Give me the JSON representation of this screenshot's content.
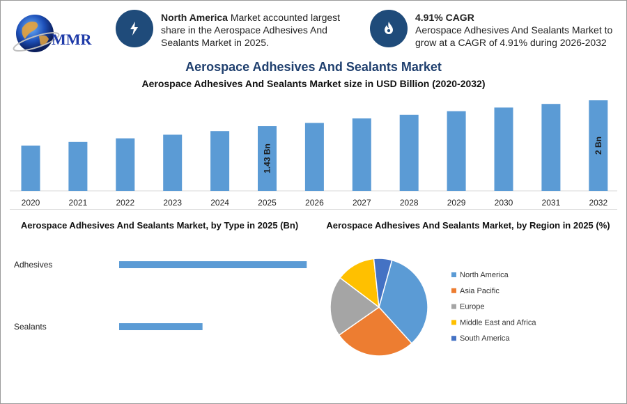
{
  "logo": {
    "text": "MMR"
  },
  "highlights": [
    {
      "title": "North America",
      "text": " Market accounted largest share in the Aerospace Adhesives And Sealants Market in 2025.",
      "icon": "lightning-icon"
    },
    {
      "title": "4.91% CAGR",
      "text": "Aerospace Adhesives And Sealants Market to grow at a CAGR of 4.91% during 2026-2032",
      "icon": "flame-icon"
    }
  ],
  "colors": {
    "bar": "#5b9bd5",
    "icon_bg": "#1f4b7a",
    "title": "#1f3f6e"
  },
  "chart_data": [
    {
      "type": "bar",
      "title": "Aerospace Adhesives And Sealants Market",
      "subtitle": "Aerospace Adhesives And Sealants Market size in USD Billion (2020-2032)",
      "categories": [
        "2020",
        "2021",
        "2022",
        "2023",
        "2024",
        "2025",
        "2026",
        "2027",
        "2028",
        "2029",
        "2030",
        "2031",
        "2032"
      ],
      "values": [
        1.0,
        1.08,
        1.16,
        1.24,
        1.32,
        1.43,
        1.5,
        1.6,
        1.68,
        1.76,
        1.84,
        1.92,
        2.0
      ],
      "data_labels": [
        {
          "category": "2025",
          "label": "1.43 Bn"
        },
        {
          "category": "2032",
          "label": "2 Bn"
        }
      ],
      "ylim": [
        0,
        2.0
      ],
      "grid": false
    },
    {
      "type": "bar",
      "orientation": "horizontal",
      "title": "Aerospace Adhesives And Sealants Market, by Type in 2025 (Bn)",
      "categories": [
        "Adhesives",
        "Sealants"
      ],
      "values": [
        0.99,
        0.44
      ],
      "xlim": [
        0,
        1.0
      ]
    },
    {
      "type": "pie",
      "title": "Aerospace Adhesives And Sealants Market, by Region in 2025 (%)",
      "labels": [
        "North America",
        "Asia Pacific",
        "Europe",
        "Middle East and Africa",
        "South America"
      ],
      "values": [
        34,
        27,
        20,
        13,
        6
      ],
      "colors": [
        "#5b9bd5",
        "#ed7d31",
        "#a5a5a5",
        "#ffc000",
        "#4472c4"
      ],
      "legend": "right"
    }
  ]
}
